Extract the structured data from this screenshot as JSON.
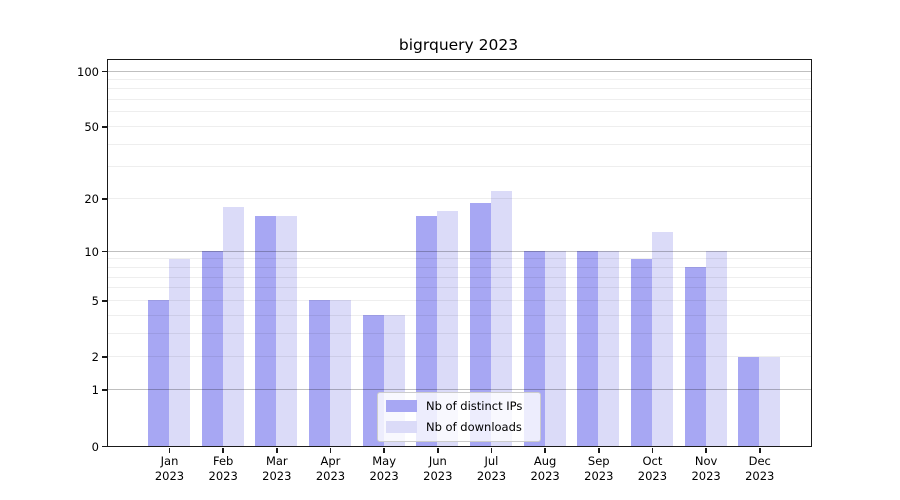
{
  "title": "bigrquery 2023",
  "chart_data": {
    "type": "bar",
    "title": "bigrquery 2023",
    "months": [
      "Jan",
      "Feb",
      "Mar",
      "Apr",
      "May",
      "Jun",
      "Jul",
      "Aug",
      "Sep",
      "Oct",
      "Nov",
      "Dec"
    ],
    "year": "2023",
    "series": [
      {
        "name": "Nb of distinct IPs",
        "color": "#a7a7f3",
        "values": [
          5,
          10,
          16,
          5,
          4,
          16,
          19,
          10,
          10,
          9,
          8,
          2
        ]
      },
      {
        "name": "Nb of downloads",
        "color": "#dbdbf8",
        "values": [
          9,
          18,
          16,
          5,
          4,
          17,
          22,
          10,
          10,
          13,
          10,
          2
        ]
      }
    ],
    "yscale": "log1p",
    "ylim": [
      0,
      100
    ],
    "yticks": [
      0,
      1,
      2,
      5,
      10,
      20,
      50,
      100
    ],
    "grid": {
      "major": [
        1,
        10,
        100
      ],
      "minor": [
        2,
        3,
        4,
        5,
        6,
        7,
        8,
        9,
        20,
        30,
        40,
        50,
        60,
        70,
        80,
        90
      ]
    },
    "legend_position": "lower center"
  }
}
